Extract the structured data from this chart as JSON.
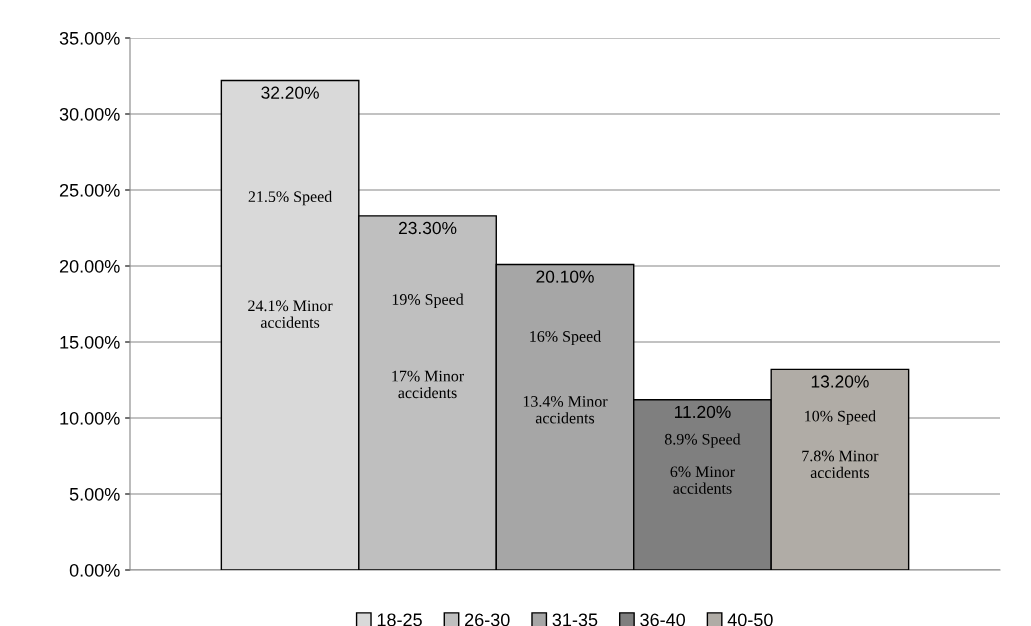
{
  "chart_data": {
    "type": "bar",
    "categories": [
      null
    ],
    "series": [
      {
        "name": "18-25",
        "color": "#d9d9d9",
        "values": [
          32.2
        ],
        "value_labels": [
          "32.20%"
        ]
      },
      {
        "name": "26-30",
        "color": "#bfbfbf",
        "values": [
          23.3
        ],
        "value_labels": [
          "23.30%"
        ]
      },
      {
        "name": "31-35",
        "color": "#a6a6a6",
        "values": [
          20.1
        ],
        "value_labels": [
          "20.10%"
        ]
      },
      {
        "name": "36-40",
        "color": "#7f7f7f",
        "values": [
          11.2
        ],
        "value_labels": [
          "11.20%"
        ]
      },
      {
        "name": "40-50",
        "color": "#b0aca6",
        "values": [
          13.2
        ],
        "value_labels": [
          "13.20%"
        ]
      }
    ],
    "ylim": [
      0,
      35
    ],
    "yticks": [
      {
        "value": 0,
        "label": "0.00%"
      },
      {
        "value": 5,
        "label": "5.00%"
      },
      {
        "value": 10,
        "label": "10.00%"
      },
      {
        "value": 15,
        "label": "15.00%"
      },
      {
        "value": 20,
        "label": "20.00%"
      },
      {
        "value": 25,
        "label": "25.00%"
      },
      {
        "value": 30,
        "label": "30.00%"
      },
      {
        "value": 35,
        "label": "35.00%"
      }
    ],
    "annotations": [
      "21.5% Speed",
      "24.1% Minor\naccidents",
      "19% Speed",
      "17% Minor\naccidents",
      "16% Speed",
      "13.4% Minor\naccidents",
      "8.9% Speed",
      "6% Minor\naccidents",
      "10% Speed",
      "7.8% Minor\naccidents"
    ],
    "grid": "y",
    "legend": "bottom"
  }
}
